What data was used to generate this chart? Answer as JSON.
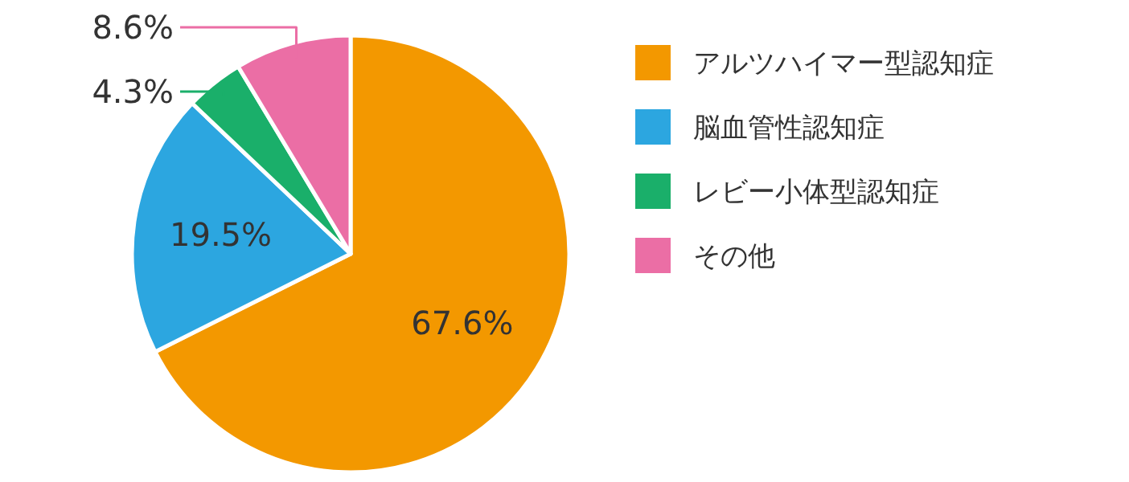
{
  "chart_data": {
    "type": "pie",
    "categories": [
      "アルツハイマー型認知症",
      "脳血管性認知症",
      "レビー小体型認知症",
      "その他"
    ],
    "values": [
      67.6,
      19.5,
      4.3,
      8.6
    ],
    "colors": [
      "#f39800",
      "#2ca6e0",
      "#1aaf6a",
      "#eb6ea5"
    ],
    "value_labels": [
      "67.6%",
      "19.5%",
      "4.3%",
      "8.6%"
    ],
    "legend": "right"
  }
}
